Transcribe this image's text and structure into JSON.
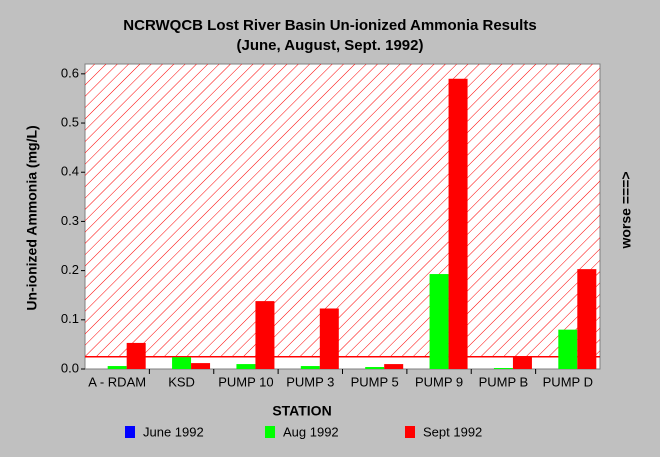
{
  "chart_data": {
    "type": "bar",
    "title": "NCRWQCB Lost River Basin Un-ionized Ammonia Results",
    "subtitle": "(June, August, Sept. 1992)",
    "y_label": "Un-ionized Ammonia (mg/L)",
    "x_label": "STATION",
    "side_note": "worse ===>",
    "categories": [
      "A - RDAM",
      "KSD",
      "PUMP 10",
      "PUMP 3",
      "PUMP 5",
      "PUMP 9",
      "PUMP B",
      "PUMP D"
    ],
    "series": [
      {
        "name": "June 1992",
        "color": "#0000ff",
        "values": [
          null,
          null,
          null,
          null,
          null,
          null,
          null,
          null
        ]
      },
      {
        "name": "Aug 1992",
        "color": "#00ff00",
        "values": [
          0.006,
          0.024,
          0.01,
          0.006,
          0.004,
          0.193,
          0.002,
          0.08
        ]
      },
      {
        "name": "Sept 1992",
        "color": "#ff0000",
        "values": [
          0.053,
          0.012,
          0.138,
          0.123,
          0.01,
          0.59,
          0.025,
          0.203
        ]
      }
    ],
    "threshold": 0.025,
    "threshold_color": "#ff0000",
    "ylim": [
      0,
      0.62
    ],
    "yticks": [
      {
        "value": 0,
        "label": "0.0"
      },
      0.1,
      0.2,
      0.3,
      0.4,
      0.5,
      0.6
    ],
    "grid": false
  }
}
